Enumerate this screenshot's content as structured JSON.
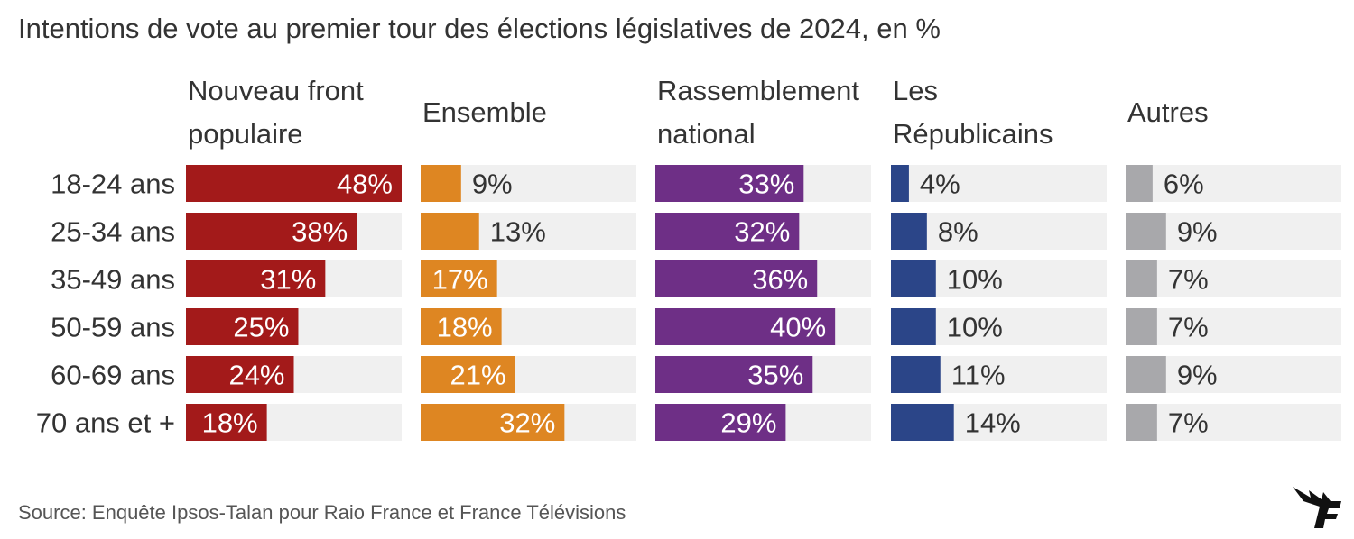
{
  "title": "Intentions de vote au premier tour des élections législatives de 2024, en %",
  "source": "Source: Enquête Ipsos-Talan pour Raio France et France Télévisions",
  "logo_icon": "le-figaro-logo-icon",
  "colors": {
    "background_track": "#f0f0f0",
    "label_light": "#ffffff",
    "label_dark": "#333333"
  },
  "chart_data": {
    "type": "bar",
    "orientation": "horizontal",
    "layout": "small-multiples",
    "title": "Intentions de vote au premier tour des élections législatives de 2024, en %",
    "categories": [
      "18-24 ans",
      "25-34 ans",
      "35-49 ans",
      "50-59 ans",
      "60-69 ans",
      "70 ans et +"
    ],
    "xlim": [
      0,
      50
    ],
    "series": [
      {
        "name": "Nouveau front populaire",
        "label_lines": [
          "Nouveau front",
          "populaire"
        ],
        "color": "#a31a1a",
        "values": [
          48,
          38,
          31,
          25,
          24,
          18
        ]
      },
      {
        "name": "Ensemble",
        "label_lines": [
          "Ensemble"
        ],
        "color": "#de8622",
        "values": [
          9,
          13,
          17,
          18,
          21,
          32
        ]
      },
      {
        "name": "Rassemblement national",
        "label_lines": [
          "Rassemblement",
          "national"
        ],
        "color": "#6e2f86",
        "values": [
          33,
          32,
          36,
          40,
          35,
          29
        ]
      },
      {
        "name": "Les Républicains",
        "label_lines": [
          "Les",
          "Républicains"
        ],
        "color": "#2b4588",
        "values": [
          4,
          8,
          10,
          10,
          11,
          14
        ]
      },
      {
        "name": "Autres",
        "label_lines": [
          "Autres"
        ],
        "color": "#a8a8ab",
        "values": [
          6,
          9,
          7,
          7,
          9,
          7
        ]
      }
    ],
    "value_suffix": "%",
    "grid": false,
    "legend": "none"
  }
}
